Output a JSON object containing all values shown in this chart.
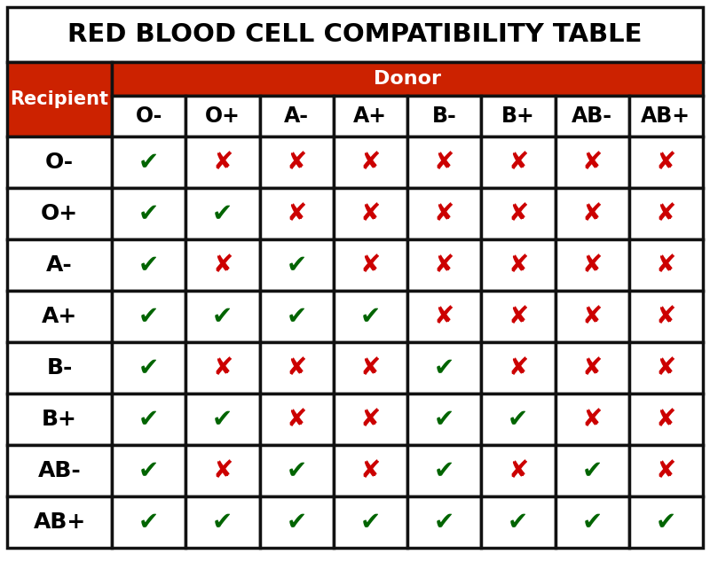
{
  "title": "RED BLOOD CELL COMPATIBILITY TABLE",
  "donor_label": "Donor",
  "recipient_label": "Recipient",
  "donors": [
    "O-",
    "O+",
    "A-",
    "A+",
    "B-",
    "B+",
    "AB-",
    "AB+"
  ],
  "recipients": [
    "O-",
    "O+",
    "A-",
    "A+",
    "B-",
    "B+",
    "AB-",
    "AB+"
  ],
  "compatibility": [
    [
      1,
      0,
      0,
      0,
      0,
      0,
      0,
      0
    ],
    [
      1,
      1,
      0,
      0,
      0,
      0,
      0,
      0
    ],
    [
      1,
      0,
      1,
      0,
      0,
      0,
      0,
      0
    ],
    [
      1,
      1,
      1,
      1,
      0,
      0,
      0,
      0
    ],
    [
      1,
      0,
      0,
      0,
      1,
      0,
      0,
      0
    ],
    [
      1,
      1,
      0,
      0,
      1,
      1,
      0,
      0
    ],
    [
      1,
      0,
      1,
      0,
      1,
      0,
      1,
      0
    ],
    [
      1,
      1,
      1,
      1,
      1,
      1,
      1,
      1
    ]
  ],
  "check_color": "#006400",
  "cross_color": "#cc0000",
  "red_bg": "#cc2200",
  "white_bg": "#ffffff",
  "black_text": "#000000",
  "white_text": "#ffffff",
  "border_color": "#111111",
  "title_fontsize": 21,
  "header_fontsize": 15,
  "donor_col_header_fontsize": 17,
  "cell_fontsize": 20,
  "recipient_data_fontsize": 18
}
